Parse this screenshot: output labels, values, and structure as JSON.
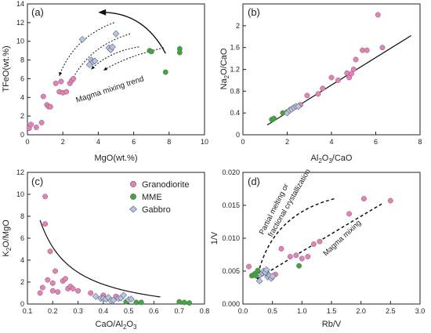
{
  "colors": {
    "granodiorite": "#e87fb8",
    "mme": "#3ea83a",
    "gabbro": "#b7c4ea",
    "axis": "#222222"
  },
  "legend": [
    {
      "key": "granodiorite",
      "label": "Granodiorite",
      "shape": "circle"
    },
    {
      "key": "mme",
      "label": "MME",
      "shape": "circle"
    },
    {
      "key": "gabbro",
      "label": "Gabbro",
      "shape": "diamond"
    }
  ],
  "chart_data": [
    {
      "type": "scatter",
      "panel_label": "(a)",
      "xlabel": "MgO(wt.%)",
      "ylabel": "TFeO(wt.%)",
      "xlim": [
        0,
        10
      ],
      "ylim": [
        0,
        14
      ],
      "xticks": [
        0,
        2,
        4,
        6,
        8,
        10
      ],
      "yticks": [
        0,
        2,
        4,
        6,
        8,
        10,
        12,
        14
      ],
      "annotations": [
        "Magma mixing trend"
      ],
      "series": [
        {
          "name": "Granodiorite",
          "key": "granodiorite",
          "points": [
            [
              0.1,
              0.7
            ],
            [
              0.2,
              1.1
            ],
            [
              0.5,
              0.8
            ],
            [
              0.8,
              1.3
            ],
            [
              0.9,
              4.1
            ],
            [
              1.1,
              3.2
            ],
            [
              1.2,
              3.0
            ],
            [
              1.3,
              3.0
            ],
            [
              1.6,
              5.5
            ],
            [
              1.8,
              4.6
            ],
            [
              1.9,
              5.7
            ],
            [
              2.0,
              4.5
            ],
            [
              2.2,
              4.6
            ],
            [
              2.4,
              5.5
            ],
            [
              2.5,
              5.8
            ],
            [
              2.6,
              6.0
            ]
          ]
        },
        {
          "name": "MME",
          "key": "mme",
          "points": [
            [
              6.9,
              9.0
            ],
            [
              7.0,
              8.9
            ],
            [
              7.8,
              6.7
            ],
            [
              8.6,
              9.2
            ],
            [
              8.6,
              8.8
            ]
          ]
        },
        {
          "name": "Gabbro",
          "key": "gabbro",
          "points": [
            [
              3.1,
              10.2
            ],
            [
              3.5,
              7.5
            ],
            [
              3.6,
              8.0
            ],
            [
              3.7,
              7.8
            ],
            [
              3.8,
              7.9
            ],
            [
              4.6,
              9.3
            ],
            [
              4.7,
              9.1
            ],
            [
              4.8,
              9.4
            ],
            [
              5.0,
              10.8
            ]
          ]
        }
      ]
    },
    {
      "type": "scatter",
      "panel_label": "(b)",
      "xlabel": "Al2O3/CaO",
      "ylabel": "Na2O/CaO",
      "xlim": [
        0,
        8
      ],
      "ylim": [
        0,
        2.4
      ],
      "xticks": [
        0,
        2,
        4,
        6,
        8
      ],
      "yticks": [
        0,
        0.4,
        0.8,
        1.2,
        1.6,
        2.0
      ],
      "trendline": [
        [
          1.1,
          0.18
        ],
        [
          7.6,
          1.82
        ]
      ],
      "series": [
        {
          "name": "Granodiorite",
          "key": "granodiorite",
          "points": [
            [
              2.6,
              0.55
            ],
            [
              2.9,
              0.72
            ],
            [
              3.4,
              0.75
            ],
            [
              3.6,
              0.85
            ],
            [
              4.0,
              1.05
            ],
            [
              4.3,
              1.0
            ],
            [
              4.7,
              1.13
            ],
            [
              4.8,
              1.05
            ],
            [
              4.9,
              1.12
            ],
            [
              5.0,
              1.2
            ],
            [
              5.1,
              1.38
            ],
            [
              5.4,
              1.55
            ],
            [
              5.6,
              1.55
            ],
            [
              6.1,
              2.2
            ],
            [
              6.3,
              1.6
            ]
          ]
        },
        {
          "name": "MME",
          "key": "mme",
          "points": [
            [
              1.3,
              0.28
            ],
            [
              1.4,
              0.3
            ],
            [
              1.8,
              0.4
            ],
            [
              2.0,
              0.42
            ]
          ]
        },
        {
          "name": "Gabbro",
          "key": "gabbro",
          "points": [
            [
              2.0,
              0.4
            ],
            [
              2.1,
              0.45
            ],
            [
              2.2,
              0.47
            ],
            [
              2.3,
              0.5
            ],
            [
              2.4,
              0.52
            ],
            [
              2.5,
              0.52
            ]
          ]
        }
      ]
    },
    {
      "type": "scatter",
      "panel_label": "(c)",
      "xlabel": "CaO/Al2O3",
      "ylabel": "K2O/MgO",
      "xlim": [
        0.1,
        0.8
      ],
      "ylim": [
        0,
        12
      ],
      "xticks": [
        0.1,
        0.2,
        0.3,
        0.4,
        0.5,
        0.6,
        0.7,
        0.8
      ],
      "yticks": [
        0,
        2,
        4,
        6,
        8,
        10,
        12
      ],
      "series": [
        {
          "name": "Granodiorite",
          "key": "granodiorite",
          "points": [
            [
              0.15,
              1.0
            ],
            [
              0.16,
              1.5
            ],
            [
              0.17,
              9.8
            ],
            [
              0.17,
              7.3
            ],
            [
              0.18,
              2.2
            ],
            [
              0.19,
              4.8
            ],
            [
              0.2,
              1.9
            ],
            [
              0.2,
              1.2
            ],
            [
              0.21,
              3.0
            ],
            [
              0.22,
              1.1
            ],
            [
              0.24,
              2.1
            ],
            [
              0.25,
              2.3
            ],
            [
              0.26,
              1.4
            ],
            [
              0.27,
              1.6
            ],
            [
              0.28,
              1.4
            ],
            [
              0.3,
              1.2
            ],
            [
              0.35,
              1.0
            ],
            [
              0.4,
              0.8
            ],
            [
              0.45,
              0.7
            ]
          ]
        },
        {
          "name": "MME",
          "key": "mme",
          "points": [
            [
              0.49,
              0.2
            ],
            [
              0.53,
              0.15
            ],
            [
              0.55,
              0.15
            ],
            [
              0.7,
              0.2
            ],
            [
              0.72,
              0.15
            ],
            [
              0.74,
              0.1
            ]
          ]
        },
        {
          "name": "Gabbro",
          "key": "gabbro",
          "points": [
            [
              0.37,
              0.7
            ],
            [
              0.39,
              0.5
            ],
            [
              0.4,
              0.5
            ],
            [
              0.41,
              0.45
            ],
            [
              0.42,
              0.6
            ],
            [
              0.43,
              0.3
            ],
            [
              0.44,
              0.35
            ],
            [
              0.46,
              0.5
            ],
            [
              0.47,
              0.55
            ],
            [
              0.48,
              0.8
            ],
            [
              0.5,
              0.4
            ],
            [
              0.51,
              0.45
            ]
          ]
        }
      ]
    },
    {
      "type": "scatter",
      "panel_label": "(d)",
      "xlabel": "Rb/V",
      "ylabel": "1/V",
      "xlim": [
        0,
        3.0
      ],
      "ylim": [
        0,
        0.02
      ],
      "xticks": [
        0,
        0.5,
        1.0,
        1.5,
        2.0,
        2.5,
        3.0
      ],
      "xtick_labels": [
        "0.0",
        "0.5",
        "1.0",
        "1.5",
        "2.0",
        "2.5",
        "3.0"
      ],
      "yticks": [
        0,
        0.005,
        0.01,
        0.015,
        0.02
      ],
      "ytick_labels": [
        "0.000",
        "0.005",
        "0.010",
        "0.015",
        "0.020"
      ],
      "annotations": [
        "Partial melting or",
        "fractional crystallization",
        "Magma mixing"
      ],
      "series": [
        {
          "name": "Granodiorite",
          "key": "granodiorite",
          "points": [
            [
              0.1,
              0.0057
            ],
            [
              0.55,
              0.0045
            ],
            [
              0.65,
              0.0084
            ],
            [
              0.8,
              0.0072
            ],
            [
              0.9,
              0.0074
            ],
            [
              1.0,
              0.0069
            ],
            [
              1.1,
              0.0072
            ],
            [
              1.2,
              0.0091
            ],
            [
              1.3,
              0.0095
            ],
            [
              1.8,
              0.0137
            ],
            [
              2.05,
              0.016
            ],
            [
              2.5,
              0.0157
            ]
          ]
        },
        {
          "name": "MME",
          "key": "mme",
          "points": [
            [
              0.15,
              0.0043
            ],
            [
              0.18,
              0.0044
            ],
            [
              0.2,
              0.0046
            ],
            [
              0.22,
              0.0043
            ],
            [
              0.25,
              0.0051
            ],
            [
              0.95,
              0.0058
            ]
          ]
        },
        {
          "name": "Gabbro",
          "key": "gabbro",
          "points": [
            [
              0.28,
              0.0035
            ],
            [
              0.3,
              0.0045
            ],
            [
              0.33,
              0.0047
            ],
            [
              0.35,
              0.005
            ],
            [
              0.38,
              0.0048
            ],
            [
              0.4,
              0.0052
            ],
            [
              0.42,
              0.0041
            ],
            [
              0.45,
              0.0043
            ],
            [
              0.48,
              0.0039
            ],
            [
              0.5,
              0.0042
            ]
          ]
        }
      ]
    }
  ]
}
